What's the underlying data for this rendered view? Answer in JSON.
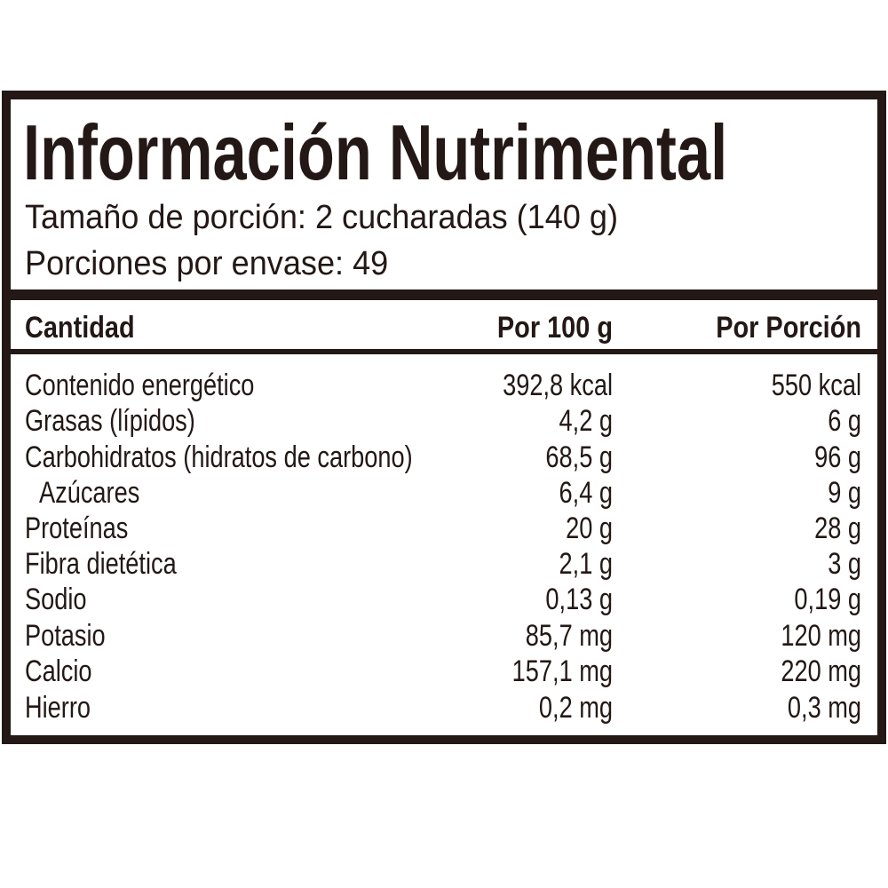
{
  "header": {
    "title": "Información Nutrimental",
    "serving_size": "Tamaño de porción: 2 cucharadas (140 g)",
    "servings_per_container": "Porciones por envase: 49"
  },
  "table": {
    "columns": [
      "Cantidad",
      "Por 100 g",
      "Por Porción"
    ],
    "rows": [
      [
        "Contenido energético",
        "392,8 kcal",
        "550 kcal"
      ],
      [
        "Grasas (lípidos)",
        "4,2 g",
        "6 g"
      ],
      [
        "Carbohidratos (hidratos de carbono)",
        "68,5 g",
        "96 g"
      ],
      [
        "Azúcares",
        "6,4 g",
        "9 g"
      ],
      [
        "Proteínas",
        "20 g",
        "28 g"
      ],
      [
        "Fibra dietética",
        "2,1 g",
        "3 g"
      ],
      [
        "Sodio",
        "0,13 g",
        "0,19 g"
      ],
      [
        "Potasio",
        "85,7 mg",
        "120 mg"
      ],
      [
        "Calcio",
        "157,1 mg",
        "220 mg"
      ],
      [
        "Hierro",
        "0,2 mg",
        "0,3 mg"
      ]
    ]
  }
}
